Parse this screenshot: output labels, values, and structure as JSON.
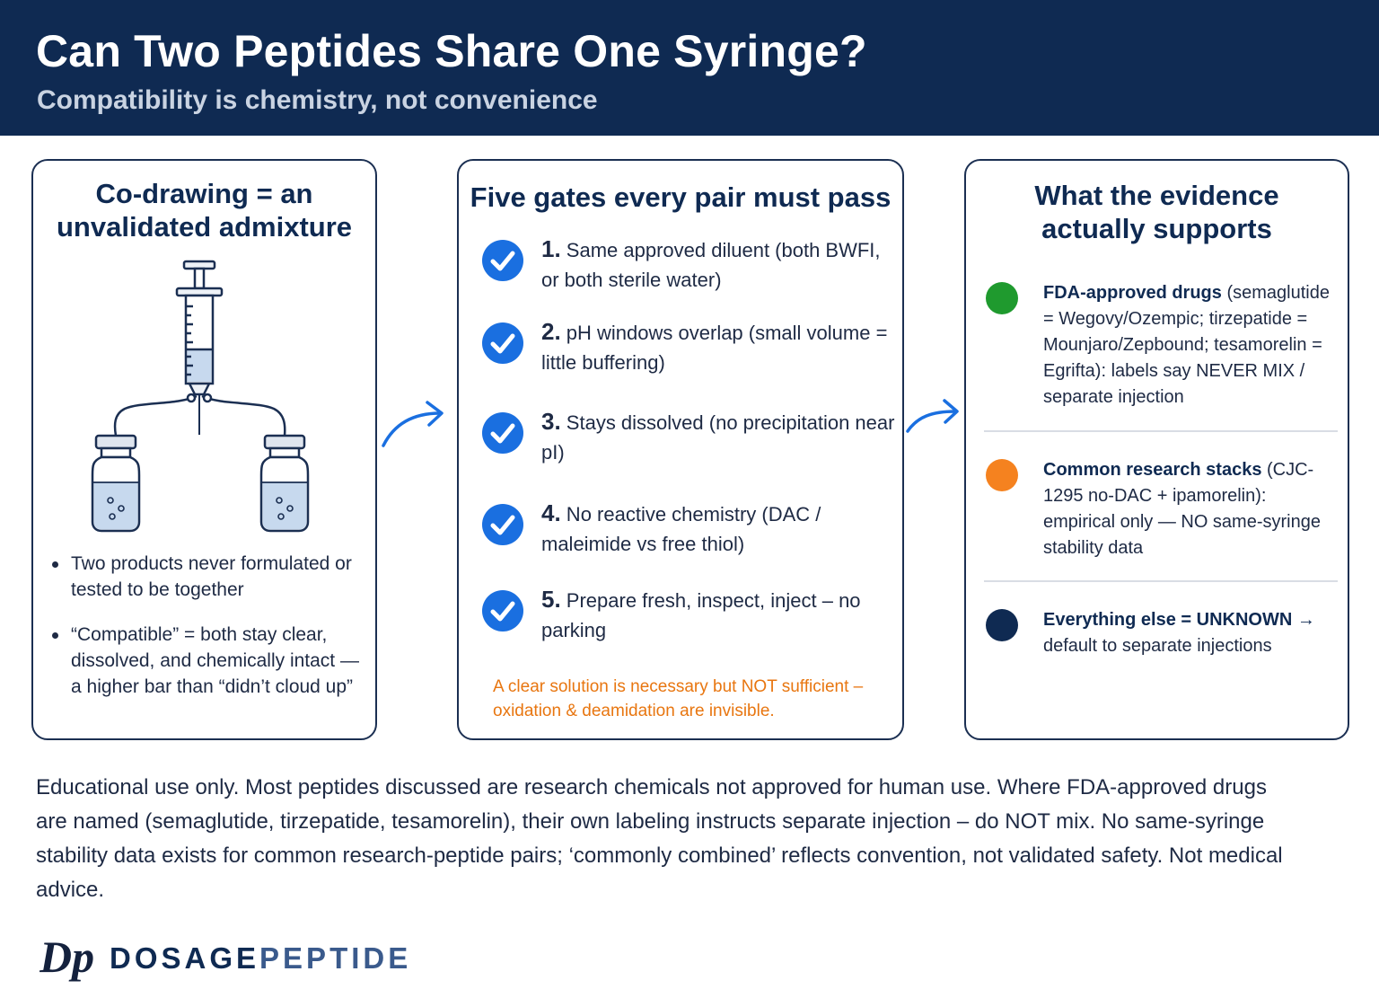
{
  "header": {
    "title": "Can Two Peptides Share One Syringe?",
    "subtitle": "Compatibility is chemistry, not convenience"
  },
  "panel_left": {
    "title": "Co-drawing = an unvalidated admixture",
    "bullets": [
      "Two products never formulated or tested to be together",
      "“Compatible” = both stay clear, dissolved, and chemically intact — a higher bar than “didn’t cloud up”"
    ]
  },
  "panel_mid": {
    "title": "Five gates every pair must pass",
    "gates": [
      {
        "num": "1.",
        "text": " Same approved diluent (both BWFI, or both sterile water)"
      },
      {
        "num": "2.",
        "text": " pH windows overlap (small volume = little buffering)"
      },
      {
        "num": "3.",
        "text": " Stays dissolved (no precipitation near pI)"
      },
      {
        "num": "4.",
        "text": " No reactive chemistry (DAC / maleimide vs free thiol)"
      },
      {
        "num": "5.",
        "text": " Prepare fresh, inspect, inject – no parking"
      }
    ],
    "warning": "A clear solution is necessary but NOT sufficient – oxidation & deamidation are invisible."
  },
  "panel_right": {
    "title": "What the evidence actually supports",
    "items": [
      {
        "head": "FDA-approved drugs",
        "body": " (semaglutide = Wegovy/Ozempic; tirzepatide = Mounjaro/Zepbound; tesamorelin = Egrifta): labels say NEVER MIX / separate injection",
        "color": "#1f9a2e"
      },
      {
        "head": "Common research stacks",
        "body": " (CJC-1295 no-DAC + ipamorelin): empirical only — NO same-syringe stability data",
        "color": "#f5821f"
      },
      {
        "head": "Everything else = UNKNOWN →",
        "body": " default to separate injections",
        "color": "#0f2a52"
      }
    ]
  },
  "footer": {
    "disclaimer": "Educational use only. Most peptides discussed are research chemicals not approved for human use. Where FDA-approved drugs are named (semaglutide, tirzepatide, tesamorelin), their own labeling instructs separate injection – do NOT mix. No same-syringe stability data exists for common research-peptide pairs; ‘commonly combined’ reflects convention, not validated safety. Not medical advice."
  },
  "brand": {
    "mark": "Dp",
    "word_part1": "DOSAGE",
    "word_part2": "PEPTIDE"
  },
  "colors": {
    "navy": "#0f2a52",
    "check_blue": "#1a6fe0",
    "warning_orange": "#e87610"
  }
}
